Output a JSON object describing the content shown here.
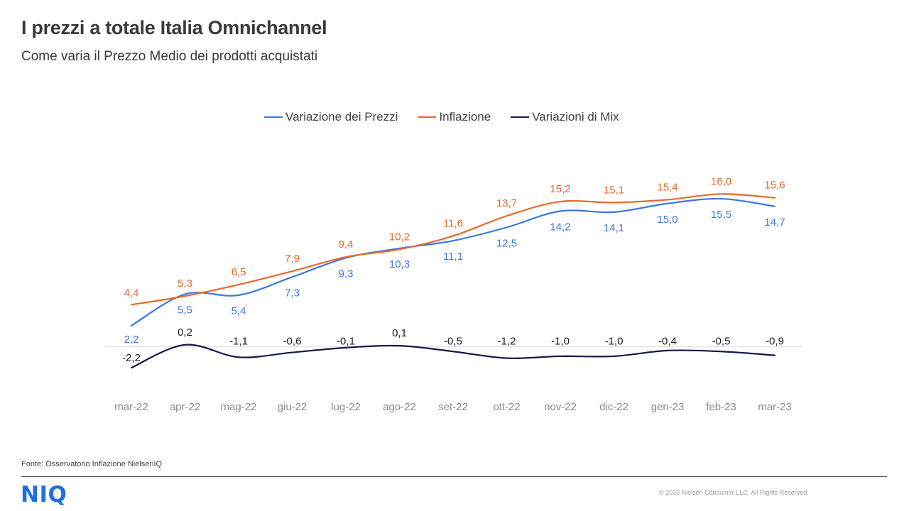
{
  "header": {
    "title": "I prezzi a totale Italia Omnichannel",
    "subtitle": "Come varia il Prezzo  Medio dei prodotti acquistati"
  },
  "footer": {
    "source": "Fonte: Osservatorio Inflazione NielsenIQ",
    "logo": "NIQ",
    "copyright": "© 2023 Nielsen Consumer LLC. All Rights Reserved."
  },
  "chart_data": {
    "type": "line",
    "categories": [
      "mar-22",
      "apr-22",
      "mag-22",
      "giu-22",
      "lug-22",
      "ago-22",
      "set-22",
      "ott-22",
      "nov-22",
      "dic-22",
      "gen-23",
      "feb-23",
      "mar-23"
    ],
    "series": [
      {
        "name": "Variazione dei Prezzi",
        "color": "#3b78e0",
        "values": [
          2.2,
          5.5,
          5.4,
          7.3,
          9.3,
          10.3,
          11.1,
          12.5,
          14.2,
          14.1,
          15.0,
          15.5,
          14.7
        ],
        "labels": [
          "2,2",
          "5,5",
          "5,4",
          "7,3",
          "9,3",
          "10,3",
          "11,1",
          "12,5",
          "14,2",
          "14,1",
          "15,0",
          "15,5",
          "14,7"
        ]
      },
      {
        "name": "Inflazione",
        "color": "#e8682a",
        "values": [
          4.4,
          5.3,
          6.5,
          7.9,
          9.4,
          10.2,
          11.6,
          13.7,
          15.2,
          15.1,
          15.4,
          16.0,
          15.6
        ],
        "labels": [
          "4,4",
          "5,3",
          "6,5",
          "7,9",
          "9,4",
          "10,2",
          "11,6",
          "13,7",
          "15,2",
          "15,1",
          "15,4",
          "16,0",
          "15,6"
        ]
      },
      {
        "name": "Variazioni di Mix",
        "color": "#131a45",
        "values": [
          -2.2,
          0.2,
          -1.1,
          -0.6,
          -0.1,
          0.1,
          -0.5,
          -1.2,
          -1.0,
          -1.0,
          -0.4,
          -0.5,
          -0.9
        ],
        "labels": [
          "-2,2",
          "0,2",
          "-1,1",
          "-0,6",
          "-0,1",
          "0,1",
          "-0,5",
          "-1,2",
          "-1,0",
          "-1,0",
          "-0,4",
          "-0,5",
          "-0,9"
        ]
      }
    ],
    "ylim": [
      -3,
      17
    ],
    "grid": false,
    "legend_position": "top-center",
    "xlabel": "",
    "ylabel": ""
  }
}
